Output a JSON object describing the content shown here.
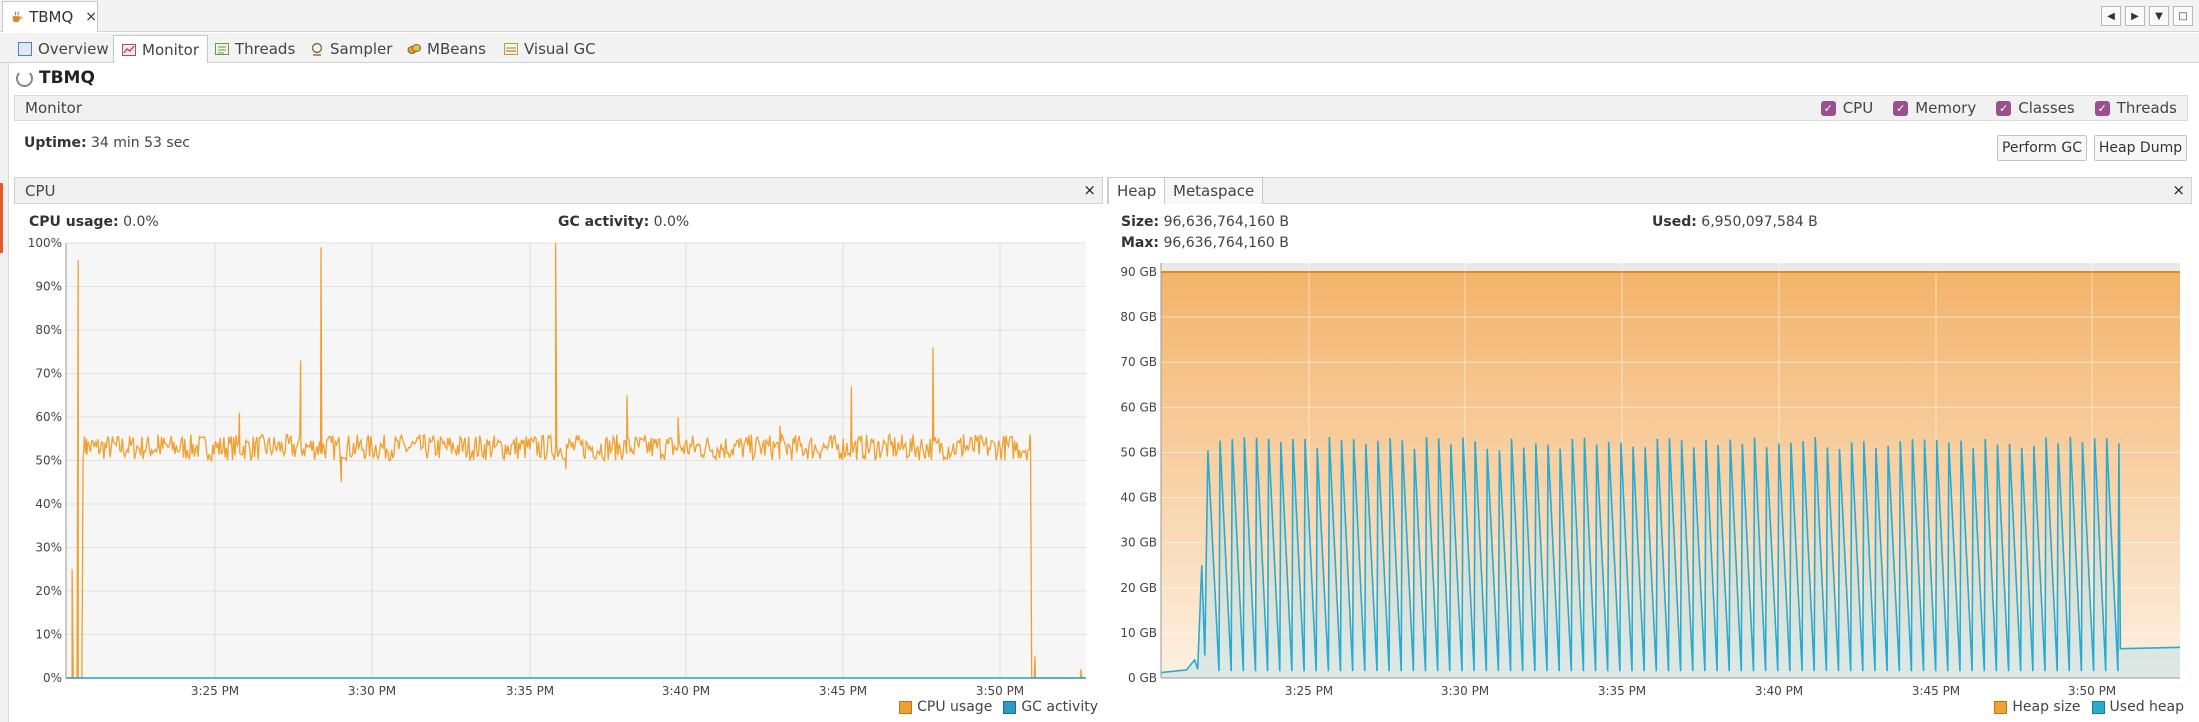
{
  "window": {
    "doc_tab_label": "TBMQ",
    "doc_tab_icon": "coffee-cup-icon"
  },
  "subtabs": [
    {
      "label": "Overview",
      "icon": "overview-icon",
      "color": "#4f7fc8"
    },
    {
      "label": "Monitor",
      "icon": "monitor-chart-icon",
      "color": "#c0504d",
      "active": true
    },
    {
      "label": "Threads",
      "icon": "threads-icon",
      "color": "#6a9a4d"
    },
    {
      "label": "Sampler",
      "icon": "sampler-icon",
      "color": "#8a6a3a"
    },
    {
      "label": "MBeans",
      "icon": "mbeans-icon",
      "color": "#c79a2a"
    },
    {
      "label": "Visual GC",
      "icon": "visual-gc-icon",
      "color": "#b8a040"
    }
  ],
  "app_title": "TBMQ",
  "monitor": {
    "label": "Monitor",
    "checks": [
      {
        "label": "CPU",
        "checked": true
      },
      {
        "label": "Memory",
        "checked": true
      },
      {
        "label": "Classes",
        "checked": true
      },
      {
        "label": "Threads",
        "checked": true
      }
    ],
    "uptime_label": "Uptime:",
    "uptime_value": "34 min 53 sec",
    "perform_gc": "Perform GC",
    "heap_dump": "Heap Dump"
  },
  "cpu_panel": {
    "title": "CPU",
    "close": "×",
    "cpu_usage_label": "CPU usage:",
    "cpu_usage_value": "0.0%",
    "gc_activity_label": "GC activity:",
    "gc_activity_value": "0.0%",
    "legend_cpu": "CPU usage",
    "legend_gc": "GC activity"
  },
  "heap_panel": {
    "tab_heap": "Heap",
    "tab_metaspace": "Metaspace",
    "close": "×",
    "size_label": "Size:",
    "size_value": "96,636,764,160 B",
    "used_label": "Used:",
    "used_value": "6,950,097,584 B",
    "max_label": "Max:",
    "max_value": "96,636,764,160 B",
    "legend_size": "Heap size",
    "legend_used": "Used heap"
  },
  "colors": {
    "cpu_line": "#f0a030",
    "gc_line": "#2b9cc8",
    "heap_size": "#f0a030",
    "used_heap": "#2baad0"
  },
  "chart_data": [
    {
      "type": "line",
      "y_ticks": [
        "100%",
        "90%",
        "80%",
        "70%",
        "60%",
        "50%",
        "40%",
        "30%",
        "20%",
        "10%",
        "0%"
      ],
      "x_ticks": [
        "3:25 PM",
        "3:30 PM",
        "3:35 PM",
        "3:40 PM",
        "3:45 PM",
        "3:50 PM"
      ],
      "ylim": [
        0,
        100
      ],
      "grid": true,
      "legend": "bottom-right",
      "series": [
        {
          "name": "CPU usage",
          "color": "#f0a030",
          "steady_value": 53,
          "points": [
            [
              0,
              0
            ],
            [
              0.6,
              25
            ],
            [
              1.2,
              96
            ],
            [
              2,
              55
            ],
            [
              3,
              53
            ],
            [
              9,
              56
            ],
            [
              17,
              61
            ],
            [
              23,
              73
            ],
            [
              25,
              99
            ],
            [
              27,
              45
            ],
            [
              35,
              53
            ],
            [
              42,
              53
            ],
            [
              48,
              100
            ],
            [
              49,
              48
            ],
            [
              55,
              65
            ],
            [
              60,
              60
            ],
            [
              70,
              58
            ],
            [
              77,
              67
            ],
            [
              82,
              54
            ],
            [
              85,
              76
            ],
            [
              88,
              56
            ],
            [
              92,
              55
            ],
            [
              94.5,
              56
            ],
            [
              95,
              5
            ],
            [
              96,
              0
            ],
            [
              99.5,
              2
            ]
          ]
        },
        {
          "name": "GC activity",
          "color": "#2b9cc8",
          "steady_value": 0
        }
      ]
    },
    {
      "type": "area",
      "y_ticks": [
        "90 GB",
        "80 GB",
        "70 GB",
        "60 GB",
        "50 GB",
        "40 GB",
        "30 GB",
        "20 GB",
        "10 GB",
        "0 GB"
      ],
      "x_ticks": [
        "3:25 PM",
        "3:30 PM",
        "3:35 PM",
        "3:40 PM",
        "3:45 PM",
        "3:50 PM"
      ],
      "ylim": [
        0,
        92
      ],
      "grid": true,
      "legend": "bottom-right",
      "series": [
        {
          "name": "Heap size",
          "color": "#f0a030",
          "value": 90
        },
        {
          "name": "Used heap",
          "color": "#2baad0",
          "sawtooth_peak": 52,
          "sawtooth_trough": 1.5,
          "cycles": 75,
          "tail_value": 6.5
        }
      ]
    }
  ]
}
